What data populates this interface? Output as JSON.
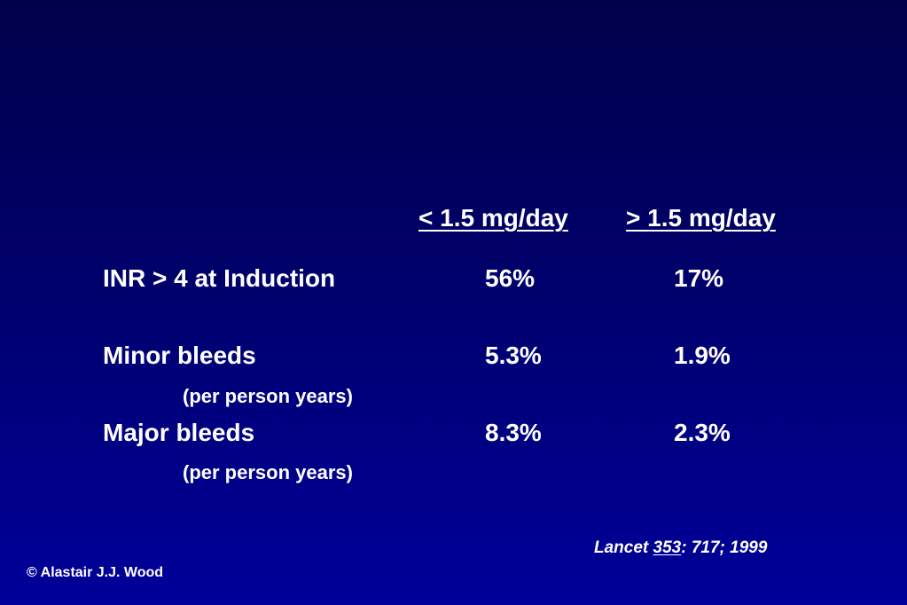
{
  "table": {
    "headers": [
      "< 1.5 mg/day",
      "> 1.5 mg/day"
    ],
    "rows": [
      {
        "label": "INR > 4 at Induction",
        "sublabel": "",
        "values": [
          "56%",
          "17%"
        ]
      },
      {
        "label": "Minor bleeds",
        "sublabel": "(per person years)",
        "values": [
          "5.3%",
          "1.9%"
        ]
      },
      {
        "label": "Major bleeds",
        "sublabel": "(per person years)",
        "values": [
          "8.3%",
          "2.3%"
        ]
      }
    ]
  },
  "citation": {
    "journal": "Lancet",
    "volume": "353",
    "rest": ": 717; 1999"
  },
  "copyright": "© Alastair J.J. Wood",
  "colors": {
    "background_top": "#00004a",
    "background_bottom": "#00009a",
    "text": "#ffffff"
  }
}
